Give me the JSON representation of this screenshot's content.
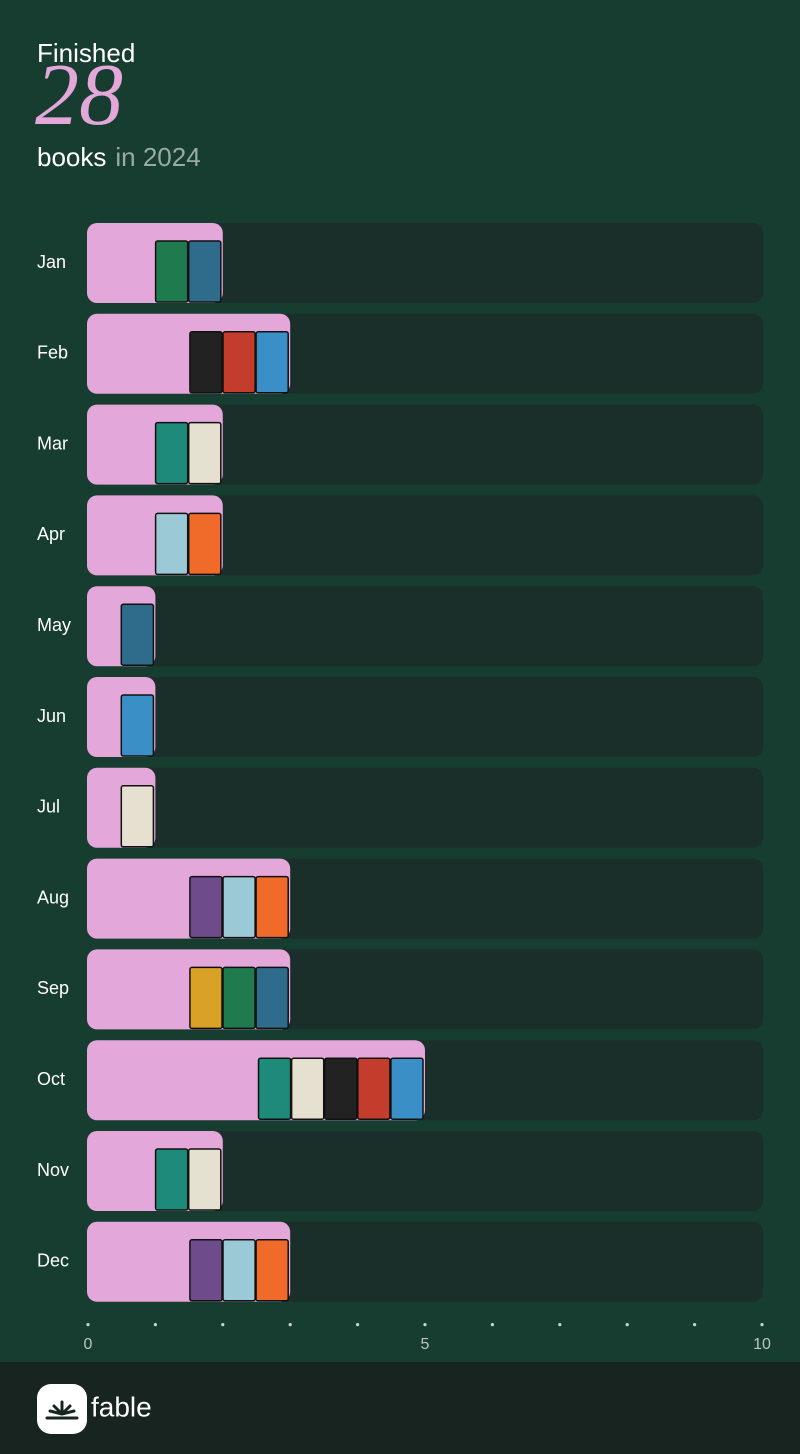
{
  "header": {
    "title": "Finished",
    "total": 28,
    "unit": "books",
    "period": "in 2024"
  },
  "chart_data": {
    "type": "bar",
    "orientation": "horizontal",
    "categories": [
      "Jan",
      "Feb",
      "Mar",
      "Apr",
      "May",
      "Jun",
      "Jul",
      "Aug",
      "Sep",
      "Oct",
      "Nov",
      "Dec"
    ],
    "values": [
      2,
      3,
      2,
      2,
      1,
      1,
      1,
      3,
      3,
      5,
      2,
      3
    ],
    "color": "#e4a7d9",
    "xlim": [
      0,
      10
    ],
    "xticks": [
      0,
      5,
      10
    ],
    "minor_xticks": [
      0,
      1,
      2,
      3,
      4,
      5,
      6,
      7,
      8,
      9,
      10
    ]
  },
  "footer": {
    "brand": "fable"
  }
}
